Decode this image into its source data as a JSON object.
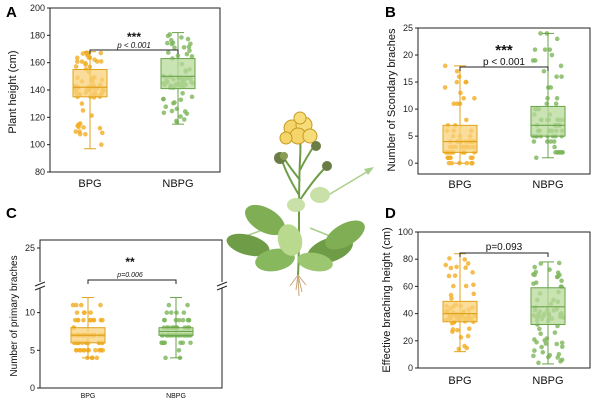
{
  "colors": {
    "bpg_fill": "#f8d17a",
    "bpg_edge": "#e0a21c",
    "bpg_point": "#f3ad22",
    "nbpg_fill": "#b7d99a",
    "nbpg_edge": "#6aa34a",
    "nbpg_point": "#7cb55a",
    "arrow": "#a8d08a"
  },
  "chart_data": [
    {
      "panel": "A",
      "type": "box",
      "ylabel": "Plant height (cm)",
      "categories": [
        "BPG",
        "NBPG"
      ],
      "ylim": [
        80,
        200
      ],
      "yticks": [
        80,
        100,
        120,
        140,
        160,
        180,
        200
      ],
      "stats": [
        {
          "name": "BPG",
          "min": 97,
          "q1": 135,
          "median": 142,
          "q3": 155,
          "max": 168
        },
        {
          "name": "NBPG",
          "min": 115,
          "q1": 141,
          "median": 150,
          "q3": 163,
          "max": 182
        }
      ],
      "significance": {
        "stars": "***",
        "p": "p < 0.001"
      }
    },
    {
      "panel": "B",
      "type": "box",
      "ylabel": "Number of Scondary braches",
      "categories": [
        "BPG",
        "NBPG"
      ],
      "ylim": [
        -2,
        25
      ],
      "yticks": [
        0,
        5,
        10,
        15,
        20,
        25
      ],
      "stats": [
        {
          "name": "BPG",
          "min": 0,
          "q1": 2,
          "median": 4,
          "q3": 7,
          "max": 18
        },
        {
          "name": "NBPG",
          "min": 1,
          "q1": 5,
          "median": 7,
          "q3": 10.5,
          "max": 24
        }
      ],
      "significance": {
        "stars": "***",
        "p": "p < 0.001"
      }
    },
    {
      "panel": "C",
      "type": "box",
      "ylabel": "Number of primary braches",
      "categories": [
        "BPG",
        "NBPG"
      ],
      "ylim": [
        0,
        25
      ],
      "yticks": [
        0,
        5,
        10,
        25
      ],
      "axis_break": true,
      "stats": [
        {
          "name": "BPG",
          "min": 4,
          "q1": 6,
          "median": 7,
          "q3": 8,
          "max": 12
        },
        {
          "name": "NBPG",
          "min": 4,
          "q1": 7,
          "median": 7.5,
          "q3": 8,
          "max": 12
        }
      ],
      "significance": {
        "stars": "**",
        "p": "p=0.006"
      }
    },
    {
      "panel": "D",
      "type": "box",
      "ylabel": "Effective braching height (cm)",
      "categories": [
        "BPG",
        "NBPG"
      ],
      "ylim": [
        0,
        100
      ],
      "yticks": [
        0,
        20,
        40,
        60,
        80,
        100
      ],
      "stats": [
        {
          "name": "BPG",
          "min": 12,
          "q1": 34,
          "median": 40,
          "q3": 49,
          "max": 84
        },
        {
          "name": "NBPG",
          "min": 3,
          "q1": 32,
          "median": 45,
          "q3": 59,
          "max": 78
        }
      ],
      "significance": {
        "stars": "",
        "p": "p=0.093"
      }
    }
  ]
}
